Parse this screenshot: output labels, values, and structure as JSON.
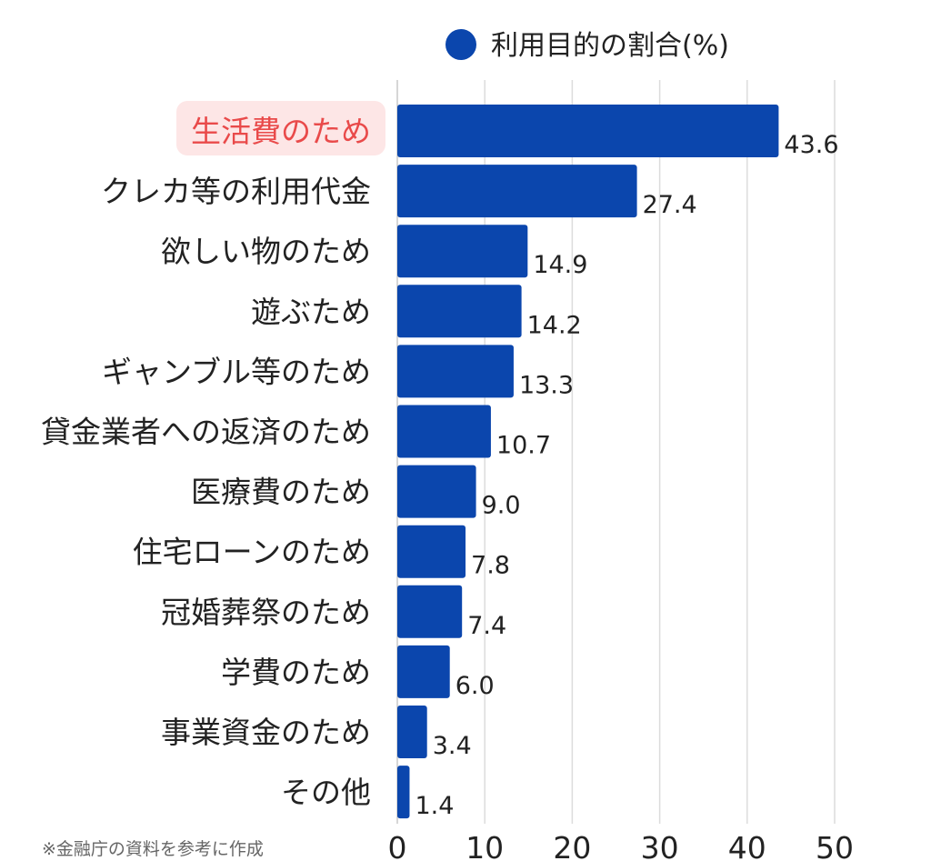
{
  "chart_data": {
    "type": "bar",
    "orientation": "horizontal",
    "categories": [
      "生活費のため",
      "クレカ等の利用代金",
      "欲しい物のため",
      "遊ぶため",
      "ギャンブル等のため",
      "貸金業者への返済のため",
      "医療費のため",
      "住宅ローンのため",
      "冠婚葬祭のため",
      "学費のため",
      "事業資金のため",
      "その他"
    ],
    "series": [
      {
        "name": "利用目的の割合(%)",
        "values": [
          43.6,
          27.4,
          14.9,
          14.2,
          13.3,
          10.7,
          9.0,
          7.8,
          7.4,
          6.0,
          3.4,
          1.4
        ],
        "labels": [
          "43.6",
          "27.4",
          "14.9",
          "14.2",
          "13.3",
          "10.7",
          "9.0",
          "7.8",
          "7.4",
          "6.0",
          "3.4",
          "1.4"
        ]
      }
    ],
    "highlighted_category": "生活費のため",
    "xlim": [
      0,
      50
    ],
    "x_ticks": [
      0,
      10,
      20,
      30,
      40,
      50
    ],
    "x_tick_labels": [
      "0",
      "10",
      "20",
      "30",
      "40",
      "50"
    ],
    "grid": true,
    "legend_position": "top-right",
    "title": "",
    "xlabel": "",
    "ylabel": ""
  },
  "note": "※金融庁の資料を参考に作成",
  "colors": {
    "bar": "#0b46ad",
    "grid": "#dcdcdc",
    "highlight_text": "#e94a4a",
    "highlight_background": "#fde6e6",
    "text": "#222222",
    "note": "#666666"
  }
}
